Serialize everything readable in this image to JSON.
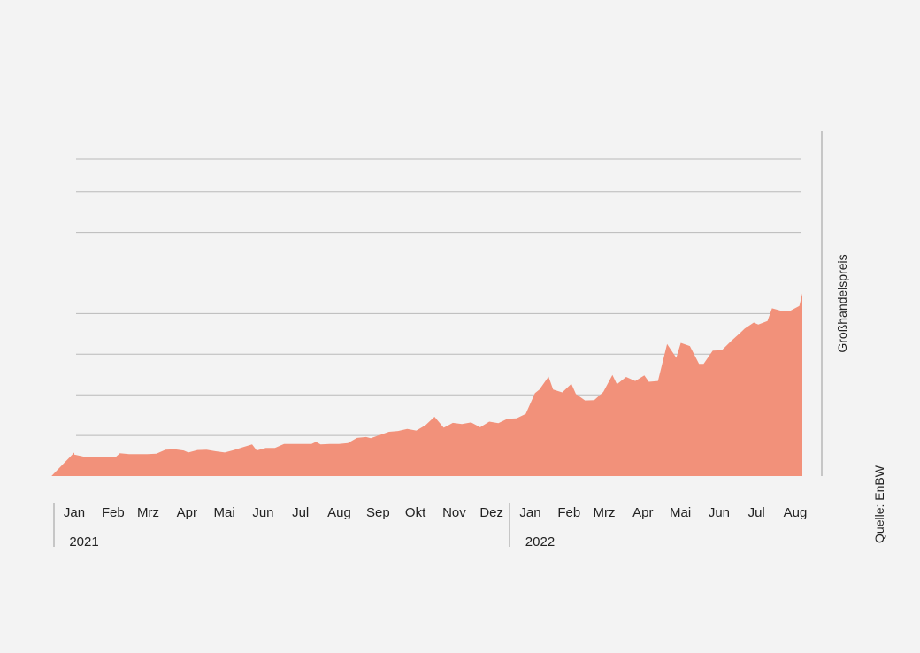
{
  "chart_data": {
    "type": "area",
    "ylabel": "Großhandelspreis",
    "source": "Quelle: EnBW",
    "y_ticks_shown": false,
    "grid": "horizontal",
    "gridline_values": [
      10,
      20,
      30,
      40,
      50,
      60,
      70,
      78
    ],
    "ylim": [
      0,
      78
    ],
    "color": "#f2917a",
    "grid_color": "#b9b9b9",
    "month_labels": [
      {
        "label": "Jan",
        "x": 2021.0
      },
      {
        "label": "Feb",
        "x": 2021.085
      },
      {
        "label": "Mrz",
        "x": 2021.162
      },
      {
        "label": "Apr",
        "x": 2021.247
      },
      {
        "label": "Mai",
        "x": 2021.329
      },
      {
        "label": "Jun",
        "x": 2021.414
      },
      {
        "label": "Jul",
        "x": 2021.496
      },
      {
        "label": "Aug",
        "x": 2021.581
      },
      {
        "label": "Sep",
        "x": 2021.666
      },
      {
        "label": "Okt",
        "x": 2021.748
      },
      {
        "label": "Nov",
        "x": 2021.833
      },
      {
        "label": "Dez",
        "x": 2021.915
      },
      {
        "label": "Jan",
        "x": 2022.0
      },
      {
        "label": "Feb",
        "x": 2022.085
      },
      {
        "label": "Mrz",
        "x": 2022.162
      },
      {
        "label": "Apr",
        "x": 2022.247
      },
      {
        "label": "Mai",
        "x": 2022.329
      },
      {
        "label": "Jun",
        "x": 2022.414
      },
      {
        "label": "Jul",
        "x": 2022.496
      },
      {
        "label": "Aug",
        "x": 2022.581
      }
    ],
    "years": [
      {
        "label": "2021",
        "x": 2021.0
      },
      {
        "label": "2022",
        "x": 2022.0
      }
    ],
    "xlim": [
      2020.95,
      2022.67
    ],
    "series": [
      {
        "values": [
          [
            2020.95,
            5.8
          ],
          [
            2020.97,
            5.6
          ],
          [
            2021.0,
            5.3
          ],
          [
            2021.02,
            4.8
          ],
          [
            2021.04,
            4.6
          ],
          [
            2021.06,
            4.6
          ],
          [
            2021.09,
            4.6
          ],
          [
            2021.1,
            5.6
          ],
          [
            2021.12,
            5.4
          ],
          [
            2021.14,
            5.4
          ],
          [
            2021.16,
            5.4
          ],
          [
            2021.18,
            5.5
          ],
          [
            2021.2,
            6.5
          ],
          [
            2021.22,
            6.6
          ],
          [
            2021.24,
            6.3
          ],
          [
            2021.25,
            5.8
          ],
          [
            2021.27,
            6.4
          ],
          [
            2021.29,
            6.5
          ],
          [
            2021.31,
            6.1
          ],
          [
            2021.33,
            5.8
          ],
          [
            2021.35,
            6.4
          ],
          [
            2021.37,
            7.1
          ],
          [
            2021.39,
            7.8
          ],
          [
            2021.4,
            6.3
          ],
          [
            2021.42,
            6.9
          ],
          [
            2021.44,
            6.9
          ],
          [
            2021.46,
            7.9
          ],
          [
            2021.48,
            7.9
          ],
          [
            2021.5,
            7.9
          ],
          [
            2021.52,
            7.9
          ],
          [
            2021.53,
            8.4
          ],
          [
            2021.54,
            7.8
          ],
          [
            2021.56,
            7.9
          ],
          [
            2021.58,
            7.9
          ],
          [
            2021.6,
            8.1
          ],
          [
            2021.62,
            9.4
          ],
          [
            2021.64,
            9.6
          ],
          [
            2021.65,
            9.3
          ],
          [
            2021.67,
            10.1
          ],
          [
            2021.69,
            10.9
          ],
          [
            2021.71,
            11.1
          ],
          [
            2021.73,
            11.6
          ],
          [
            2021.75,
            11.2
          ],
          [
            2021.77,
            12.5
          ],
          [
            2021.79,
            14.6
          ],
          [
            2021.81,
            11.9
          ],
          [
            2021.83,
            13.1
          ],
          [
            2021.85,
            12.8
          ],
          [
            2021.87,
            13.2
          ],
          [
            2021.89,
            12.0
          ],
          [
            2021.91,
            13.4
          ],
          [
            2021.93,
            13.0
          ],
          [
            2021.95,
            14.1
          ],
          [
            2021.97,
            14.2
          ],
          [
            2021.99,
            15.3
          ],
          [
            2022.01,
            20.4
          ],
          [
            2022.02,
            21.3
          ],
          [
            2022.04,
            24.5
          ],
          [
            2022.05,
            21.3
          ],
          [
            2022.07,
            20.6
          ],
          [
            2022.09,
            22.7
          ],
          [
            2022.1,
            20.2
          ],
          [
            2022.12,
            18.6
          ],
          [
            2022.14,
            18.7
          ],
          [
            2022.16,
            20.7
          ],
          [
            2022.18,
            24.9
          ],
          [
            2022.19,
            22.6
          ],
          [
            2022.21,
            24.4
          ],
          [
            2022.23,
            23.4
          ],
          [
            2022.25,
            24.8
          ],
          [
            2022.26,
            23.2
          ],
          [
            2022.28,
            23.4
          ],
          [
            2022.3,
            32.5
          ],
          [
            2022.32,
            29.1
          ],
          [
            2022.33,
            32.8
          ],
          [
            2022.35,
            32.0
          ],
          [
            2022.37,
            27.6
          ],
          [
            2022.38,
            27.6
          ],
          [
            2022.4,
            30.9
          ],
          [
            2022.42,
            31.0
          ],
          [
            2022.44,
            33.2
          ],
          [
            2022.46,
            35.2
          ],
          [
            2022.47,
            36.3
          ],
          [
            2022.49,
            37.8
          ],
          [
            2022.5,
            37.3
          ],
          [
            2022.52,
            38.2
          ],
          [
            2022.53,
            41.3
          ],
          [
            2022.55,
            40.7
          ],
          [
            2022.57,
            40.7
          ],
          [
            2022.59,
            41.9
          ],
          [
            2022.6,
            45.0
          ],
          [
            2022.61,
            45.5
          ],
          [
            2022.62,
            43.8
          ],
          [
            2022.63,
            47.8
          ],
          [
            2022.64,
            48.0
          ],
          [
            2022.65,
            45.9
          ],
          [
            2022.66,
            51.3
          ]
        ]
      }
    ]
  }
}
